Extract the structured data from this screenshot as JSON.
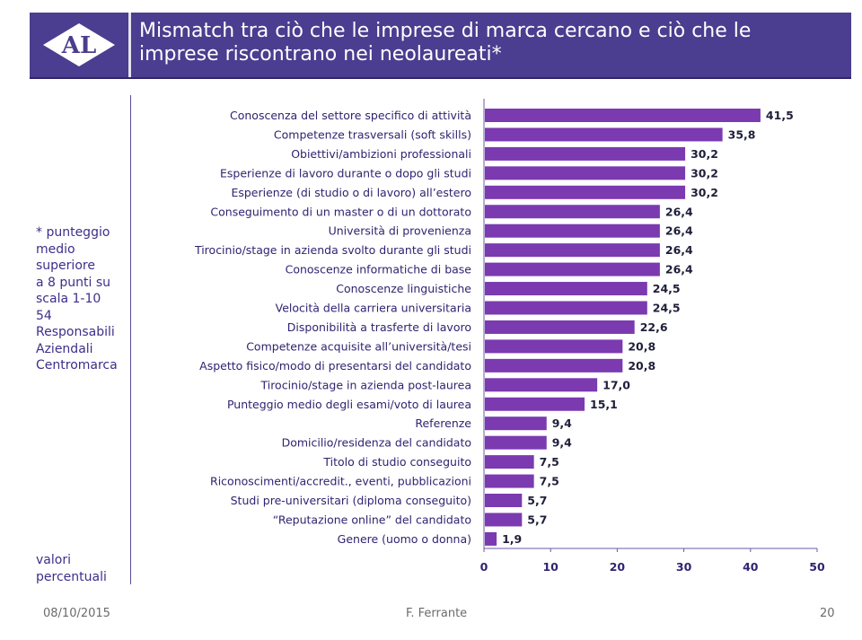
{
  "header": {
    "logo_text": "AL",
    "title_line1": "Mismatch tra ciò che le imprese di marca cercano e ciò che le",
    "title_line2": "imprese riscontrano nei neolaureati*"
  },
  "side_note": {
    "lines": [
      "* punteggio",
      "medio",
      "superiore",
      "a 8 punti su",
      "scala 1-10",
      "54",
      "Responsabili",
      "Aziendali",
      "Centromarca"
    ]
  },
  "valori_note": {
    "lines": [
      "valori",
      "percentuali"
    ]
  },
  "footer": {
    "date": "08/10/2015",
    "author": "F. Ferrante",
    "page": "20"
  },
  "colors": {
    "header_bg": "#4b3d8f",
    "bar": "#7b3ab0",
    "label": "#2e2470"
  },
  "chart_data": {
    "type": "bar",
    "orientation": "horizontal",
    "title": "",
    "xlabel": "",
    "ylabel": "",
    "xlim": [
      0,
      50
    ],
    "ticks": [
      0,
      10,
      20,
      30,
      40,
      50
    ],
    "categories": [
      "Conoscenza del settore specifico di attività",
      "Competenze trasversali (soft skills)",
      "Obiettivi/ambizioni professionali",
      "Esperienze di lavoro durante o dopo gli studi",
      "Esperienze (di studio o di lavoro) all’estero",
      "Conseguimento di un master o di un dottorato",
      "Università di provenienza",
      "Tirocinio/stage in azienda svolto durante gli studi",
      "Conoscenze informatiche di base",
      "Conoscenze linguistiche",
      "Velocità della carriera universitaria",
      "Disponibilità a trasferte di lavoro",
      "Competenze acquisite all’università/tesi",
      "Aspetto fisico/modo di presentarsi del candidato",
      "Tirocinio/stage in azienda post-laurea",
      "Punteggio medio degli esami/voto di laurea",
      "Referenze",
      "Domicilio/residenza del candidato",
      "Titolo di studio conseguito",
      "Riconoscimenti/accredit., eventi, pubblicazioni",
      "Studi pre-universitari (diploma conseguito)",
      "“Reputazione online” del candidato",
      "Genere (uomo o donna)"
    ],
    "values": [
      41.5,
      35.8,
      30.2,
      30.2,
      30.2,
      26.4,
      26.4,
      26.4,
      26.4,
      24.5,
      24.5,
      22.6,
      20.8,
      20.8,
      17.0,
      15.1,
      9.4,
      9.4,
      7.5,
      7.5,
      5.7,
      5.7,
      1.9
    ],
    "value_labels": [
      "41,5",
      "35,8",
      "30,2",
      "30,2",
      "30,2",
      "26,4",
      "26,4",
      "26,4",
      "26,4",
      "24,5",
      "24,5",
      "22,6",
      "20,8",
      "20,8",
      "17,0",
      "15,1",
      "9,4",
      "9,4",
      "7,5",
      "7,5",
      "5,7",
      "5,7",
      "1,9"
    ]
  }
}
